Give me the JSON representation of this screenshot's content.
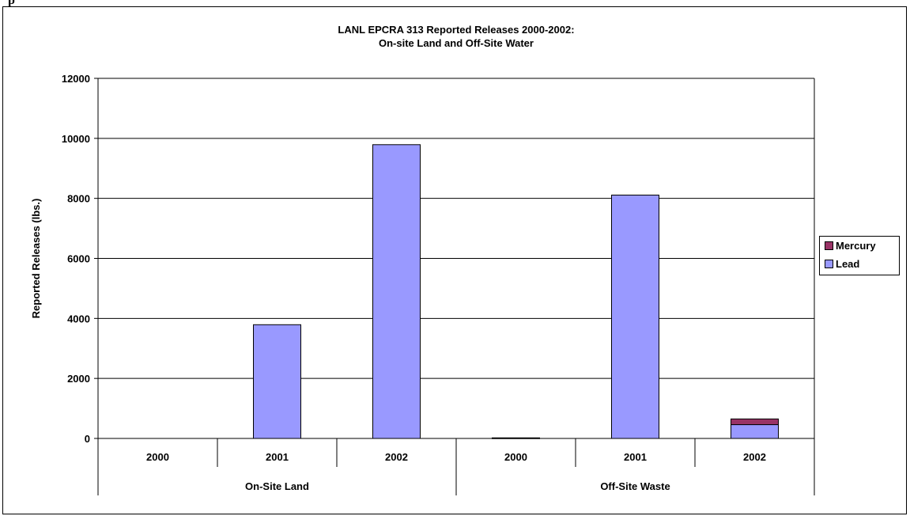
{
  "page": {
    "top_partial_text": "p"
  },
  "chart_data": {
    "type": "bar",
    "stacked": true,
    "title": "LANL EPCRA 313 Reported Releases 2000-2002:",
    "subtitle": "On-site Land and Off-Site Water",
    "xlabel": "",
    "ylabel": "Reported Releases (lbs.)",
    "ylim": [
      0,
      12000
    ],
    "yticks": [
      0,
      2000,
      4000,
      6000,
      8000,
      10000,
      12000
    ],
    "grid": true,
    "legend_position": "right",
    "groups": [
      {
        "label": "On-Site Land",
        "categories": [
          "2000",
          "2001",
          "2002"
        ]
      },
      {
        "label": "Off-Site Waste",
        "categories": [
          "2000",
          "2001",
          "2002"
        ]
      }
    ],
    "categories": [
      "2000",
      "2001",
      "2002",
      "2000",
      "2001",
      "2002"
    ],
    "series": [
      {
        "name": "Lead",
        "color": "#9999ff",
        "values": [
          0,
          3790,
          9790,
          20,
          8110,
          460
        ]
      },
      {
        "name": "Mercury",
        "color": "#993366",
        "values": [
          0,
          0,
          0,
          0,
          0,
          190
        ]
      }
    ],
    "legend": [
      "Mercury",
      "Lead"
    ]
  }
}
